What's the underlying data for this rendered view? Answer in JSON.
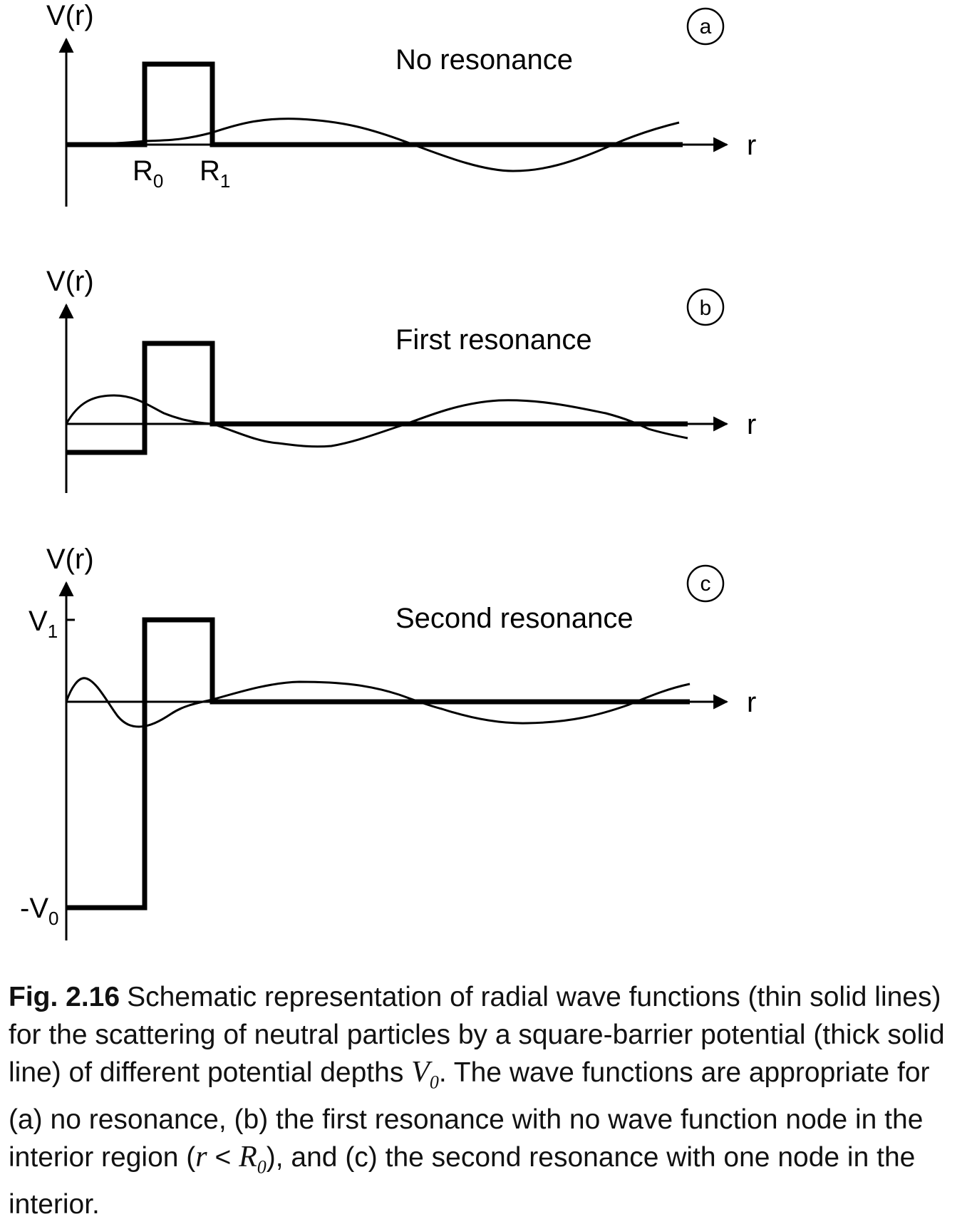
{
  "panels": [
    {
      "badge": "a",
      "title": "No resonance",
      "ylabel": "V(r)",
      "xlabel": "r",
      "tick_labels": [
        {
          "main": "R",
          "sub": "0"
        },
        {
          "main": "R",
          "sub": "1"
        }
      ]
    },
    {
      "badge": "b",
      "title": "First resonance",
      "ylabel": "V(r)",
      "xlabel": "r",
      "tick_labels": []
    },
    {
      "badge": "c",
      "title": "Second resonance",
      "ylabel": "V(r)",
      "xlabel": "r",
      "tick_labels": [
        {
          "main": "V",
          "sub": "1"
        },
        {
          "main": "-V",
          "sub": "0"
        }
      ]
    }
  ],
  "caption": {
    "figure_number": "Fig. 2.16",
    "text_1": "Schematic representation of radial wave functions (thin solid lines) for the scattering of neutral particles by a square-barrier potential (thick solid line) of different potential depths ",
    "v0_main": "V",
    "v0_sub": "0",
    "text_2": ". The wave functions are appropriate for (a) no resonance, (b) the first resonance with no wave function node in the interior region (",
    "ineq_r": "r",
    "ineq_lt": " < ",
    "r0_main": "R",
    "r0_sub": "0",
    "text_3": "), and (c) the second resonance with one node in the interior."
  },
  "colors": {
    "ink": "#000000",
    "caption_text": "#111111"
  }
}
